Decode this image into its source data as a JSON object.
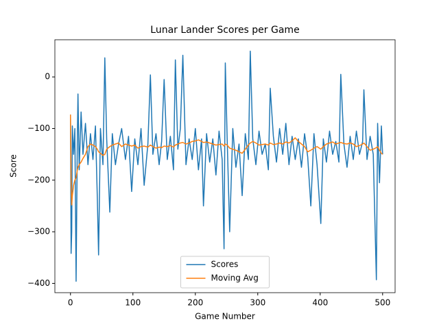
{
  "chart_data": {
    "type": "line",
    "title": "Lunar Lander Scores per Game",
    "x_label": "Game Number",
    "y_label": "Score",
    "x": [
      0,
      1,
      2,
      3,
      5,
      7,
      9,
      11,
      12,
      14,
      17,
      20,
      24,
      28,
      32,
      36,
      40,
      43,
      45,
      48,
      52,
      55,
      58,
      63,
      67,
      72,
      77,
      82,
      88,
      93,
      98,
      103,
      108,
      113,
      118,
      124,
      128,
      132,
      137,
      142,
      146,
      150,
      155,
      160,
      165,
      168,
      172,
      176,
      180,
      185,
      190,
      195,
      200,
      205,
      210,
      213,
      218,
      223,
      228,
      233,
      238,
      243,
      246,
      248,
      251,
      255,
      260,
      265,
      270,
      275,
      280,
      285,
      288,
      292,
      297,
      302,
      307,
      312,
      317,
      320,
      325,
      330,
      335,
      340,
      345,
      350,
      355,
      360,
      365,
      370,
      375,
      380,
      385,
      390,
      395,
      401,
      405,
      410,
      415,
      420,
      425,
      430,
      433,
      438,
      443,
      448,
      453,
      458,
      463,
      468,
      470,
      475,
      480,
      485,
      490,
      492,
      495,
      498,
      500
    ],
    "series": [
      {
        "name": "Scores",
        "color": "#1f77b4",
        "values": [
          -73,
          -342,
          -300,
          -95,
          -150,
          -100,
          -396,
          -120,
          -33,
          -180,
          -68,
          -150,
          -90,
          -170,
          -110,
          -160,
          -95,
          -235,
          -345,
          -100,
          -170,
          37,
          -120,
          -262,
          -110,
          -170,
          -130,
          -100,
          -160,
          -115,
          -222,
          -120,
          -170,
          -100,
          -210,
          -130,
          4,
          -150,
          -110,
          -170,
          -125,
          -5,
          -160,
          -115,
          -180,
          33,
          -140,
          -100,
          42,
          -170,
          -120,
          -160,
          -100,
          -180,
          -120,
          -250,
          -110,
          -165,
          -120,
          -190,
          -105,
          -160,
          -333,
          27,
          -120,
          -300,
          -100,
          -175,
          -130,
          -230,
          -110,
          -160,
          50,
          -120,
          -170,
          -105,
          -150,
          -130,
          -180,
          -22,
          -115,
          -165,
          -100,
          -150,
          -90,
          -170,
          -115,
          -160,
          -120,
          -175,
          -110,
          -155,
          -250,
          -110,
          -170,
          -284,
          -120,
          -165,
          -105,
          -150,
          -125,
          -165,
          5,
          -130,
          -175,
          -115,
          -160,
          -105,
          -150,
          -125,
          -25,
          -160,
          -115,
          -150,
          -393,
          -90,
          -205,
          -95,
          -150
        ]
      },
      {
        "name": "Moving Avg",
        "color": "#ff7f0e",
        "values": [
          -73,
          -200,
          -248,
          -230,
          -210,
          -200,
          -195,
          -180,
          -175,
          -170,
          -165,
          -158,
          -150,
          -135,
          -130,
          -132,
          -135,
          -140,
          -145,
          -148,
          -152,
          -150,
          -140,
          -135,
          -132,
          -130,
          -128,
          -135,
          -130,
          -132,
          -134,
          -132,
          -138,
          -135,
          -134,
          -136,
          -132,
          -135,
          -138,
          -136,
          -137,
          -134,
          -135,
          -133,
          -136,
          -132,
          -130,
          -128,
          -127,
          -130,
          -128,
          -125,
          -124,
          -122,
          -125,
          -127,
          -126,
          -128,
          -130,
          -132,
          -131,
          -130,
          -134,
          -130,
          -132,
          -138,
          -140,
          -142,
          -145,
          -148,
          -140,
          -132,
          -128,
          -125,
          -128,
          -132,
          -131,
          -130,
          -132,
          -128,
          -131,
          -130,
          -128,
          -130,
          -126,
          -128,
          -124,
          -118,
          -125,
          -130,
          -135,
          -145,
          -142,
          -138,
          -135,
          -140,
          -135,
          -130,
          -128,
          -126,
          -130,
          -128,
          -127,
          -129,
          -130,
          -128,
          -130,
          -135,
          -133,
          -130,
          -128,
          -135,
          -142,
          -140,
          -137,
          -135,
          -142,
          -148,
          -150
        ]
      }
    ],
    "xlim": [
      -25,
      520
    ],
    "xticks": [
      0,
      100,
      200,
      300,
      400,
      500
    ],
    "ylim": [
      -418,
      72
    ],
    "yticks": [
      {
        "value": -400,
        "label": "−400"
      },
      {
        "value": -300,
        "label": "−300"
      },
      {
        "value": -200,
        "label": "−200"
      },
      {
        "value": -100,
        "label": "−100"
      },
      0
    ],
    "legend": "lower center"
  }
}
